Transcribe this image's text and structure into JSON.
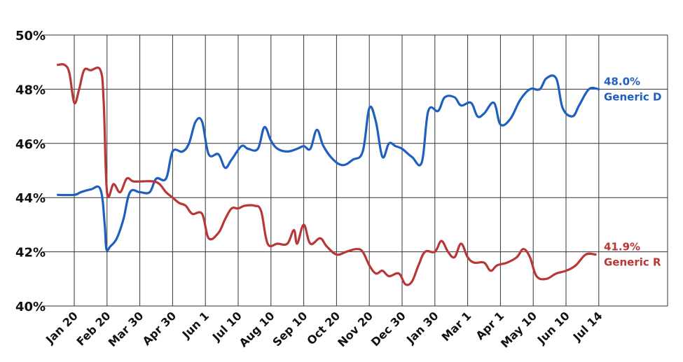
{
  "chart_data": {
    "type": "line",
    "title": "",
    "xlabel": "",
    "ylabel": "",
    "ylim": [
      40,
      50
    ],
    "y_ticks": [
      "40%",
      "42%",
      "44%",
      "46%",
      "48%",
      "50%"
    ],
    "y_tick_values": [
      40,
      42,
      44,
      46,
      48,
      50
    ],
    "x_tick_labels": [
      "Jan 20",
      "Feb 20",
      "Mar 30",
      "Apr 30",
      "Jun 1",
      "Jul 10",
      "Aug 10",
      "Sep 10",
      "Oct 20",
      "Nov 20",
      "Dec 30",
      "Jan 30",
      "Mar 1",
      "Apr 1",
      "May 10",
      "Jun 10",
      "Jul 14"
    ],
    "x_range": [
      -0.2,
      16.1
    ],
    "grid": "on",
    "series": [
      {
        "name": "Generic D",
        "color": "#1f5fbf",
        "end_label": "48.0%",
        "points": [
          [
            -0.5,
            44.1
          ],
          [
            0,
            44.1
          ],
          [
            0.2,
            44.2
          ],
          [
            0.5,
            44.3
          ],
          [
            0.8,
            44.3
          ],
          [
            0.93,
            43
          ],
          [
            0.98,
            42.1
          ],
          [
            1.1,
            42.2
          ],
          [
            1.3,
            42.5
          ],
          [
            1.5,
            43.2
          ],
          [
            1.7,
            44.2
          ],
          [
            2.0,
            44.2
          ],
          [
            2.3,
            44.2
          ],
          [
            2.5,
            44.7
          ],
          [
            2.8,
            44.7
          ],
          [
            3.0,
            45.7
          ],
          [
            3.3,
            45.7
          ],
          [
            3.5,
            46
          ],
          [
            3.7,
            46.8
          ],
          [
            3.9,
            46.8
          ],
          [
            4.1,
            45.6
          ],
          [
            4.4,
            45.6
          ],
          [
            4.6,
            45.1
          ],
          [
            4.8,
            45.4
          ],
          [
            5.1,
            45.9
          ],
          [
            5.3,
            45.8
          ],
          [
            5.6,
            45.8
          ],
          [
            5.8,
            46.6
          ],
          [
            6.0,
            46.1
          ],
          [
            6.2,
            45.8
          ],
          [
            6.5,
            45.7
          ],
          [
            6.8,
            45.8
          ],
          [
            7.0,
            45.9
          ],
          [
            7.2,
            45.8
          ],
          [
            7.4,
            46.5
          ],
          [
            7.6,
            45.9
          ],
          [
            7.9,
            45.4
          ],
          [
            8.2,
            45.2
          ],
          [
            8.5,
            45.4
          ],
          [
            8.8,
            45.7
          ],
          [
            9.0,
            47.3
          ],
          [
            9.2,
            46.8
          ],
          [
            9.4,
            45.5
          ],
          [
            9.6,
            46
          ],
          [
            9.8,
            45.9
          ],
          [
            10.0,
            45.8
          ],
          [
            10.3,
            45.5
          ],
          [
            10.6,
            45.3
          ],
          [
            10.8,
            47.2
          ],
          [
            11.1,
            47.2
          ],
          [
            11.3,
            47.7
          ],
          [
            11.6,
            47.7
          ],
          [
            11.8,
            47.4
          ],
          [
            12.1,
            47.5
          ],
          [
            12.3,
            47
          ],
          [
            12.5,
            47.1
          ],
          [
            12.8,
            47.5
          ],
          [
            13.0,
            46.7
          ],
          [
            13.3,
            46.9
          ],
          [
            13.6,
            47.6
          ],
          [
            13.9,
            48
          ],
          [
            14.2,
            48
          ],
          [
            14.4,
            48.4
          ],
          [
            14.7,
            48.4
          ],
          [
            14.9,
            47.3
          ],
          [
            15.2,
            47
          ],
          [
            15.4,
            47.4
          ],
          [
            15.7,
            48
          ],
          [
            16.0,
            48
          ]
        ]
      },
      {
        "name": "Generic R",
        "color": "#b83737",
        "end_label": "41.9%",
        "points": [
          [
            -0.5,
            48.9
          ],
          [
            -0.3,
            48.9
          ],
          [
            -0.15,
            48.6
          ],
          [
            0,
            47.5
          ],
          [
            0.15,
            48
          ],
          [
            0.3,
            48.7
          ],
          [
            0.5,
            48.7
          ],
          [
            0.8,
            48.7
          ],
          [
            0.9,
            47.5
          ],
          [
            1.0,
            44.2
          ],
          [
            1.2,
            44.5
          ],
          [
            1.4,
            44.2
          ],
          [
            1.6,
            44.7
          ],
          [
            1.8,
            44.6
          ],
          [
            2.1,
            44.6
          ],
          [
            2.4,
            44.6
          ],
          [
            2.6,
            44.5
          ],
          [
            2.8,
            44.2
          ],
          [
            3.0,
            44
          ],
          [
            3.2,
            43.8
          ],
          [
            3.4,
            43.7
          ],
          [
            3.6,
            43.4
          ],
          [
            3.9,
            43.4
          ],
          [
            4.1,
            42.5
          ],
          [
            4.4,
            42.7
          ],
          [
            4.6,
            43.2
          ],
          [
            4.8,
            43.6
          ],
          [
            5.0,
            43.6
          ],
          [
            5.2,
            43.7
          ],
          [
            5.5,
            43.7
          ],
          [
            5.7,
            43.5
          ],
          [
            5.9,
            42.3
          ],
          [
            6.2,
            42.3
          ],
          [
            6.5,
            42.3
          ],
          [
            6.7,
            42.8
          ],
          [
            6.8,
            42.3
          ],
          [
            7.0,
            43
          ],
          [
            7.2,
            42.3
          ],
          [
            7.5,
            42.5
          ],
          [
            7.7,
            42.2
          ],
          [
            8.0,
            41.9
          ],
          [
            8.3,
            42
          ],
          [
            8.6,
            42.1
          ],
          [
            8.8,
            42
          ],
          [
            9.0,
            41.5
          ],
          [
            9.2,
            41.2
          ],
          [
            9.4,
            41.3
          ],
          [
            9.6,
            41.1
          ],
          [
            9.9,
            41.2
          ],
          [
            10.1,
            40.8
          ],
          [
            10.3,
            40.9
          ],
          [
            10.5,
            41.5
          ],
          [
            10.7,
            42
          ],
          [
            11.0,
            42
          ],
          [
            11.2,
            42.4
          ],
          [
            11.4,
            42
          ],
          [
            11.6,
            41.8
          ],
          [
            11.8,
            42.3
          ],
          [
            12.0,
            41.8
          ],
          [
            12.2,
            41.6
          ],
          [
            12.5,
            41.6
          ],
          [
            12.7,
            41.3
          ],
          [
            12.9,
            41.5
          ],
          [
            13.2,
            41.6
          ],
          [
            13.5,
            41.8
          ],
          [
            13.7,
            42.1
          ],
          [
            13.9,
            41.8
          ],
          [
            14.1,
            41.1
          ],
          [
            14.4,
            41
          ],
          [
            14.7,
            41.2
          ],
          [
            15.0,
            41.3
          ],
          [
            15.3,
            41.5
          ],
          [
            15.6,
            41.9
          ],
          [
            15.9,
            41.9
          ]
        ]
      }
    ]
  }
}
